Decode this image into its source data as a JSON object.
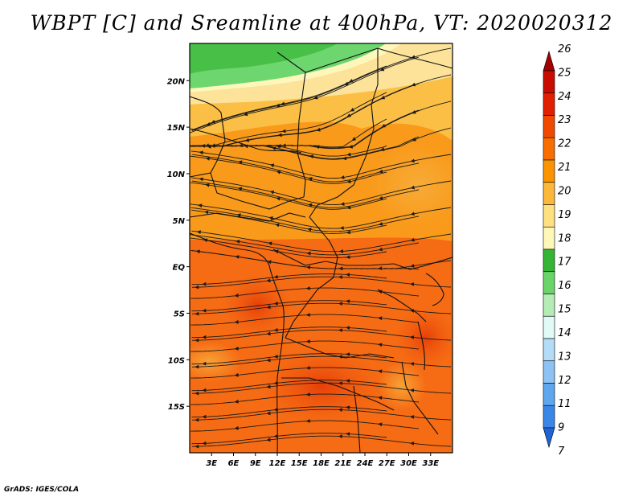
{
  "title": "WBPT [C] and Sreamline at 400hPa, VT: 2020020312",
  "footer": "GrADS: IGES/COLA",
  "map": {
    "lon_range": [
      0,
      36
    ],
    "lat_range": [
      -20,
      24
    ],
    "lat_ticks": [
      {
        "value": 20,
        "label": "20N"
      },
      {
        "value": 15,
        "label": "15N"
      },
      {
        "value": 10,
        "label": "10N"
      },
      {
        "value": 5,
        "label": "5N"
      },
      {
        "value": 0,
        "label": "EQ"
      },
      {
        "value": -5,
        "label": "5S"
      },
      {
        "value": -10,
        "label": "10S"
      },
      {
        "value": -15,
        "label": "15S"
      }
    ],
    "lon_ticks": [
      {
        "value": 3,
        "label": "3E"
      },
      {
        "value": 6,
        "label": "6E"
      },
      {
        "value": 9,
        "label": "9E"
      },
      {
        "value": 12,
        "label": "12E"
      },
      {
        "value": 15,
        "label": "15E"
      },
      {
        "value": 18,
        "label": "18E"
      },
      {
        "value": 21,
        "label": "21E"
      },
      {
        "value": 24,
        "label": "24E"
      },
      {
        "value": 27,
        "label": "27E"
      },
      {
        "value": 30,
        "label": "30E"
      },
      {
        "value": 33,
        "label": "33E"
      }
    ]
  },
  "colorbar": {
    "levels": [
      {
        "label": "26",
        "color": "#a50000"
      },
      {
        "label": "25",
        "color": "#c80c00"
      },
      {
        "label": "24",
        "color": "#e02000"
      },
      {
        "label": "23",
        "color": "#f04a00"
      },
      {
        "label": "22",
        "color": "#f86e00"
      },
      {
        "label": "21",
        "color": "#fa9400"
      },
      {
        "label": "20",
        "color": "#fbb83a"
      },
      {
        "label": "19",
        "color": "#fde080"
      },
      {
        "label": "18",
        "color": "#fef8b8"
      },
      {
        "label": "17",
        "color": "#36b436"
      },
      {
        "label": "16",
        "color": "#6ad46a"
      },
      {
        "label": "15",
        "color": "#b4ecb4"
      },
      {
        "label": "14",
        "color": "#e2faf6"
      },
      {
        "label": "13",
        "color": "#b4dcf8"
      },
      {
        "label": "12",
        "color": "#8cc2f4"
      },
      {
        "label": "11",
        "color": "#5ea6ee"
      },
      {
        "label": "9",
        "color": "#3a86e6"
      },
      {
        "label": "7",
        "color": "#1e64d8"
      }
    ],
    "bottom_color": "#1e64d8"
  }
}
